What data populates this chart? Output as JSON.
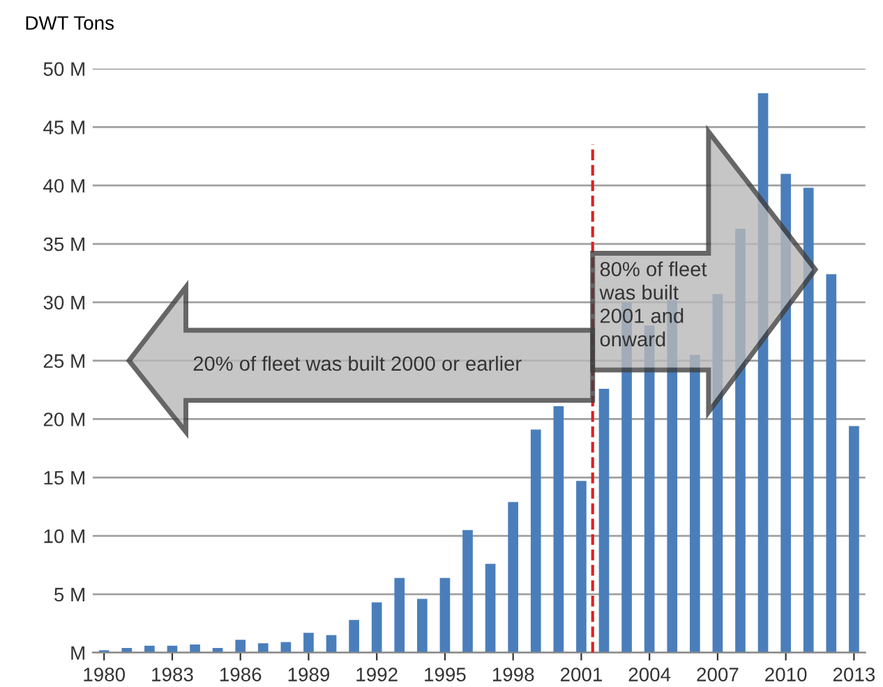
{
  "chart_data": {
    "type": "bar",
    "ylabel": "DWT Tons",
    "x": [
      1980,
      1981,
      1982,
      1983,
      1984,
      1985,
      1986,
      1987,
      1988,
      1989,
      1990,
      1991,
      1992,
      1993,
      1994,
      1995,
      1996,
      1997,
      1998,
      1999,
      2000,
      2001,
      2002,
      2003,
      2004,
      2005,
      2006,
      2007,
      2008,
      2009,
      2010,
      2011,
      2012,
      2013
    ],
    "series": [
      {
        "color": "#4a7ebb",
        "values": [
          0.2,
          0.4,
          0.6,
          0.6,
          0.7,
          0.4,
          1.1,
          0.8,
          0.9,
          1.7,
          1.5,
          2.8,
          4.3,
          6.4,
          4.6,
          6.4,
          10.5,
          7.6,
          12.9,
          19.1,
          21.1,
          14.7,
          22.6,
          30.0,
          28.0,
          30.2,
          25.5,
          30.7,
          36.3,
          47.9,
          41.0,
          39.8,
          32.4,
          19.4
        ]
      }
    ],
    "xlim": [
      1979.5,
      2013.5
    ],
    "xticks": [
      1980,
      1983,
      1986,
      1989,
      1992,
      1995,
      1998,
      2001,
      2004,
      2007,
      2010,
      2013
    ],
    "ylim": [
      0,
      50
    ],
    "yticks": [
      {
        "value": 0,
        "label": "M"
      },
      {
        "value": 5,
        "label": "5 M"
      },
      {
        "value": 10,
        "label": "10 M"
      },
      {
        "value": 15,
        "label": "15 M"
      },
      {
        "value": 20,
        "label": "20 M"
      },
      {
        "value": 25,
        "label": "25 M"
      },
      {
        "value": 30,
        "label": "30 M"
      },
      {
        "value": 35,
        "label": "35 M"
      },
      {
        "value": 40,
        "label": "40 M"
      },
      {
        "value": 45,
        "label": "45 M"
      },
      {
        "value": 50,
        "label": "50 M"
      }
    ],
    "grid": "y",
    "ref_lines": [
      {
        "axis": "x",
        "value": 2001.5,
        "color": "#e02020",
        "line_style": "dashed"
      }
    ],
    "annotations": [
      "20% of fleet was built 2000 or earlier",
      "80% of fleet\nwas built\n2001 and\nonward"
    ]
  }
}
